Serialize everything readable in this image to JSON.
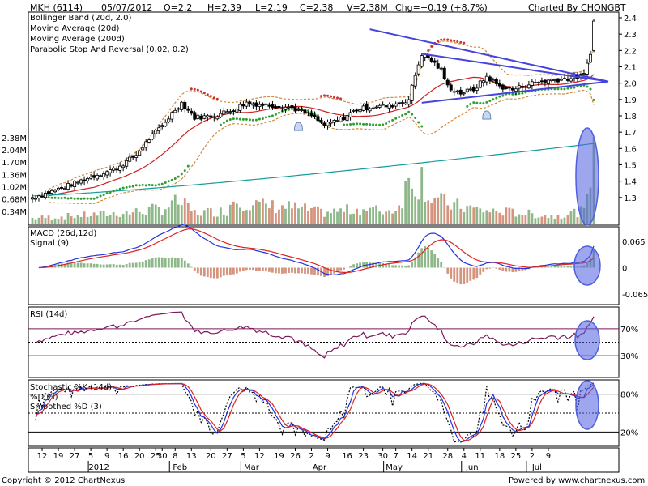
{
  "header": {
    "symbol": "MKH (6114)",
    "date": "05/07/2012",
    "open": "O=2.2",
    "high": "H=2.39",
    "low": "L=2.19",
    "close": "C=2.38",
    "volume": "V=2.38M",
    "change": "Chg=+0.19 (+8.7%)",
    "charted_by": "Charted By CHONGBT"
  },
  "footer": {
    "copyright": "Copyright © 2012 ChartNexus",
    "powered": "Powered by www.chartnexus.com"
  },
  "colors": {
    "bollinger": "#d08a3c",
    "ma20": "#cc2222",
    "ma200": "#159b9b",
    "psar": "#2e9e2e",
    "up_volume": "#8fb88a",
    "down_volume": "#d4947e",
    "macd": "#2233dd",
    "signal": "#dd2222",
    "rsi": "#7a1a5a",
    "trendline": "#4444dd",
    "highlight": "#4f5fe0"
  },
  "chart_data": [
    {
      "type": "candlestick",
      "panel": "price",
      "legend": [
        {
          "name": "Bollinger Band (20d, 2.0)",
          "color": "#d08a3c"
        },
        {
          "name": "Moving Average (20d)",
          "color": "#cc2222"
        },
        {
          "name": "Moving Average (200d)",
          "color": "#159b9b"
        },
        {
          "name": "Parabolic Stop And Reversal (0.02, 0.2)",
          "color": "#2e9e2e"
        }
      ],
      "ylim": [
        1.18,
        2.42
      ],
      "yticks": [
        1.3,
        1.4,
        1.5,
        1.6,
        1.7,
        1.8,
        1.9,
        2.0,
        2.1,
        2.2,
        2.3,
        2.4
      ],
      "volume_ticks": [
        "0.34M",
        "0.68M",
        "1.02M",
        "1.36M",
        "1.70M",
        "2.04M",
        "2.38M"
      ],
      "volume_ylim": [
        0,
        2.6
      ],
      "close_keypoints": [
        [
          0,
          1.3
        ],
        [
          5,
          1.33
        ],
        [
          12,
          1.38
        ],
        [
          20,
          1.44
        ],
        [
          26,
          1.48
        ],
        [
          32,
          1.56
        ],
        [
          36,
          1.66
        ],
        [
          40,
          1.74
        ],
        [
          44,
          1.84
        ],
        [
          46,
          1.88
        ],
        [
          50,
          1.79
        ],
        [
          56,
          1.8
        ],
        [
          62,
          1.84
        ],
        [
          66,
          1.88
        ],
        [
          70,
          1.87
        ],
        [
          76,
          1.86
        ],
        [
          80,
          1.85
        ],
        [
          86,
          1.8
        ],
        [
          90,
          1.74
        ],
        [
          96,
          1.79
        ],
        [
          100,
          1.84
        ],
        [
          106,
          1.86
        ],
        [
          110,
          1.86
        ],
        [
          116,
          1.9
        ],
        [
          118,
          2.05
        ],
        [
          120,
          2.18
        ],
        [
          123,
          2.14
        ],
        [
          126,
          2.08
        ],
        [
          128,
          1.98
        ],
        [
          132,
          1.94
        ],
        [
          136,
          1.96
        ],
        [
          140,
          2.04
        ],
        [
          144,
          1.98
        ],
        [
          148,
          1.96
        ],
        [
          154,
          2.0
        ],
        [
          160,
          2.02
        ],
        [
          166,
          2.03
        ],
        [
          170,
          2.05
        ],
        [
          172,
          2.19
        ],
        [
          173,
          2.38
        ]
      ],
      "volume_keypoints": [
        [
          0,
          0.15
        ],
        [
          10,
          0.2
        ],
        [
          20,
          0.25
        ],
        [
          30,
          0.3
        ],
        [
          40,
          0.42
        ],
        [
          45,
          0.6
        ],
        [
          50,
          0.3
        ],
        [
          60,
          0.35
        ],
        [
          62,
          0.7
        ],
        [
          70,
          0.5
        ],
        [
          80,
          0.45
        ],
        [
          90,
          0.3
        ],
        [
          100,
          0.4
        ],
        [
          110,
          0.35
        ],
        [
          113,
          0.5
        ],
        [
          116,
          1.2
        ],
        [
          117,
          1.5
        ],
        [
          118,
          1.0
        ],
        [
          120,
          1.3
        ],
        [
          122,
          0.8
        ],
        [
          126,
          0.6
        ],
        [
          130,
          0.5
        ],
        [
          140,
          0.35
        ],
        [
          150,
          0.3
        ],
        [
          160,
          0.2
        ],
        [
          170,
          0.35
        ],
        [
          171,
          0.6
        ],
        [
          172,
          1.2
        ],
        [
          173,
          2.38
        ]
      ]
    },
    {
      "type": "line",
      "panel": "macd",
      "legend": [
        {
          "name": "MACD (26d,12d)",
          "color": "#2233dd"
        },
        {
          "name": "Signal (9)",
          "color": "#dd2222"
        }
      ],
      "ylim": [
        -0.085,
        0.095
      ],
      "yticks": [
        0.065,
        0,
        -0.065
      ],
      "ytick_labels": [
        "0.065",
        "0",
        "-0.065"
      ]
    },
    {
      "type": "line",
      "panel": "rsi",
      "legend": [
        {
          "name": "RSI (14d)",
          "color": "#7a1a5a"
        }
      ],
      "ylim": [
        0,
        100
      ],
      "yticks": [
        70,
        30
      ],
      "ytick_labels": [
        "70%",
        "30%"
      ]
    },
    {
      "type": "line",
      "panel": "stochastic",
      "legend": [
        {
          "name": "Stochastic %K (14d)",
          "color": "#000000"
        },
        {
          "name": "%D (3)",
          "color": "#2233dd"
        },
        {
          "name": "Smoothed %D (3)",
          "color": "#dd2222"
        }
      ],
      "ylim": [
        0,
        100
      ],
      "yticks": [
        80,
        20
      ],
      "ytick_labels": [
        "80%",
        "20%"
      ]
    }
  ],
  "x_axis": {
    "day_labels": [
      {
        "i": 3,
        "t": "12"
      },
      {
        "i": 8,
        "t": "19"
      },
      {
        "i": 13,
        "t": "27"
      },
      {
        "i": 18,
        "t": "5"
      },
      {
        "i": 23,
        "t": "9"
      },
      {
        "i": 28,
        "t": "16"
      },
      {
        "i": 33,
        "t": "20"
      },
      {
        "i": 38,
        "t": "25"
      },
      {
        "i": 40,
        "t": "30"
      },
      {
        "i": 44,
        "t": "8"
      },
      {
        "i": 49,
        "t": "13"
      },
      {
        "i": 55,
        "t": "20"
      },
      {
        "i": 60,
        "t": "27"
      },
      {
        "i": 65,
        "t": "5"
      },
      {
        "i": 70,
        "t": "12"
      },
      {
        "i": 76,
        "t": "19"
      },
      {
        "i": 81,
        "t": "26"
      },
      {
        "i": 86,
        "t": "2"
      },
      {
        "i": 91,
        "t": "9"
      },
      {
        "i": 97,
        "t": "16"
      },
      {
        "i": 102,
        "t": "23"
      },
      {
        "i": 108,
        "t": "30"
      },
      {
        "i": 112,
        "t": "7"
      },
      {
        "i": 117,
        "t": "14"
      },
      {
        "i": 122,
        "t": "21"
      },
      {
        "i": 128,
        "t": "28"
      },
      {
        "i": 133,
        "t": "4"
      },
      {
        "i": 138,
        "t": "11"
      },
      {
        "i": 144,
        "t": "18"
      },
      {
        "i": 149,
        "t": "25"
      },
      {
        "i": 154,
        "t": "2"
      },
      {
        "i": 159,
        "t": "9"
      }
    ],
    "month_labels": [
      {
        "i": 18,
        "t": "2012"
      },
      {
        "i": 43,
        "t": "Feb"
      },
      {
        "i": 65,
        "t": "Mar"
      },
      {
        "i": 86,
        "t": "Apr"
      },
      {
        "i": 109,
        "t": "May"
      },
      {
        "i": 133,
        "t": "Jun"
      },
      {
        "i": 153,
        "t": "Jul"
      }
    ]
  }
}
